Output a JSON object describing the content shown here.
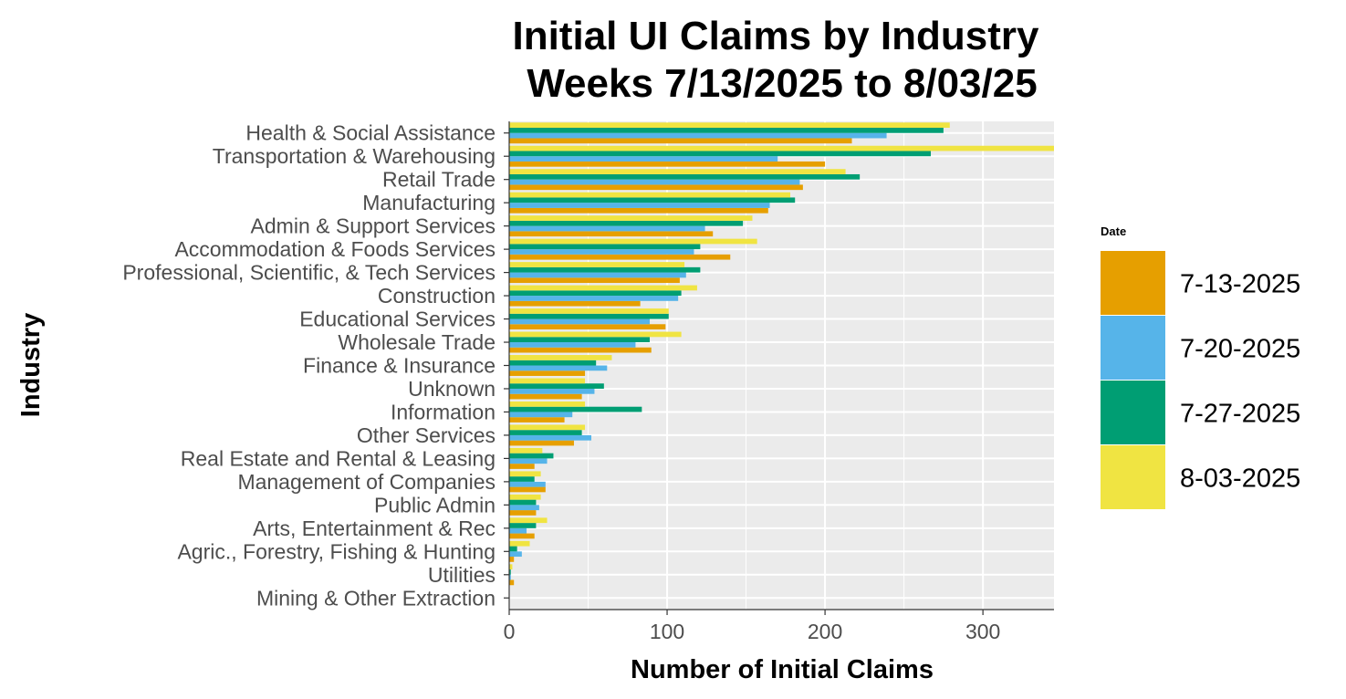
{
  "chart_data": {
    "type": "bar",
    "orientation": "horizontal",
    "title_lines": [
      "Initial UI Claims by Industry",
      "Weeks  7/13/2025 to 8/03/25"
    ],
    "xlabel": "Number of Initial Claims",
    "ylabel": "Industry",
    "xlim": [
      0,
      345
    ],
    "xticks": [
      0,
      100,
      200,
      300
    ],
    "grid": true,
    "legend": {
      "title": "Date",
      "position": "right"
    },
    "categories": [
      "Health & Social Assistance",
      "Transportation & Warehousing",
      "Retail Trade",
      "Manufacturing",
      "Admin & Support Services",
      "Accommodation & Foods Services",
      "Professional, Scientific, & Tech Services",
      "Construction",
      "Educational Services",
      "Wholesale Trade",
      "Finance & Insurance",
      "Unknown",
      "Information",
      "Other Services",
      "Real Estate and Rental & Leasing",
      "Management of Companies",
      "Public Admin",
      "Arts, Entertainment & Rec",
      "Agric., Forestry, Fishing & Hunting",
      "Utilities",
      "Mining & Other Extraction"
    ],
    "series": [
      {
        "name": "7-13-2025",
        "color": "#E69F00",
        "values": [
          217,
          200,
          186,
          164,
          129,
          140,
          108,
          83,
          99,
          90,
          48,
          46,
          35,
          41,
          16,
          23,
          17,
          16,
          3,
          3,
          0
        ]
      },
      {
        "name": "7-20-2025",
        "color": "#56B4E9",
        "values": [
          239,
          170,
          184,
          165,
          124,
          117,
          112,
          107,
          89,
          80,
          62,
          54,
          40,
          52,
          24,
          23,
          19,
          11,
          8,
          1,
          0
        ]
      },
      {
        "name": "7-27-2025",
        "color": "#009E73",
        "values": [
          275,
          267,
          222,
          181,
          148,
          121,
          121,
          109,
          101,
          89,
          55,
          60,
          84,
          46,
          28,
          16,
          17,
          17,
          5,
          1,
          0
        ]
      },
      {
        "name": "8-03-2025",
        "color": "#F0E442",
        "values": [
          279,
          345,
          213,
          178,
          154,
          157,
          111,
          119,
          101,
          109,
          65,
          48,
          48,
          48,
          21,
          20,
          20,
          24,
          13,
          2,
          0
        ]
      }
    ]
  }
}
